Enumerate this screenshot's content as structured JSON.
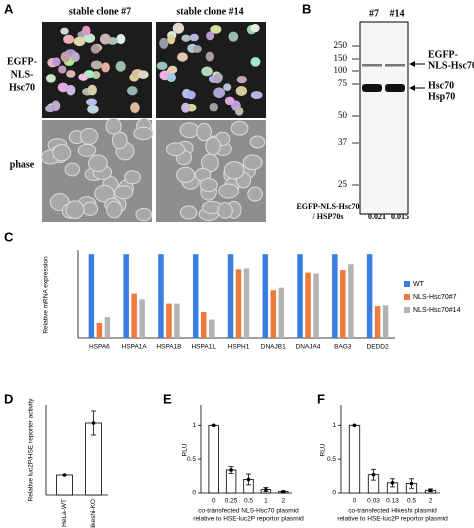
{
  "panels": {
    "A": {
      "label": "A",
      "columns": [
        "stable clone #7",
        "stable clone #14"
      ],
      "rows": [
        [
          "EGFP-",
          "NLS-",
          "Hsc70"
        ],
        [
          "phase"
        ]
      ]
    },
    "B": {
      "label": "B",
      "lanes": [
        "#7",
        "#14"
      ],
      "markers": [
        "250",
        "150",
        "100",
        "75",
        "50",
        "37",
        "25"
      ],
      "annotations": [
        [
          "EGFP-",
          "NLS-Hsc70"
        ],
        [
          "Hsc70",
          "Hsp70"
        ]
      ],
      "ratio_label": [
        "EGFP-NLS-Hsc70",
        "/ HSP70s"
      ],
      "ratios": [
        "0.021",
        "0.015"
      ]
    }
  },
  "chart_data": [
    {
      "type": "bar",
      "panel": "C",
      "ylabel": "Relative mRNA expression",
      "categories": [
        "HSPA6",
        "HSPA1A",
        "HSPA1B",
        "HSPA1L",
        "HSPH1",
        "DNAJB1",
        "DNAJA4",
        "BAG3",
        "DEDD2"
      ],
      "series": [
        {
          "name": "WT",
          "color": "#3a7de3",
          "values": [
            1,
            1,
            1,
            1,
            1,
            1,
            1,
            1,
            1
          ]
        },
        {
          "name": "NLS-Hsc70#7",
          "color": "#f07a3a",
          "values": [
            0.18,
            0.53,
            0.41,
            0.31,
            0.82,
            0.57,
            0.78,
            0.81,
            0.38
          ]
        },
        {
          "name": "NLS-Hsc70#14",
          "color": "#b3b3b3",
          "values": [
            0.25,
            0.46,
            0.41,
            0.22,
            0.83,
            0.6,
            0.77,
            0.88,
            0.39
          ]
        }
      ],
      "ylim": [
        0,
        1.05
      ]
    },
    {
      "type": "errbar",
      "panel": "D",
      "ylabel": "Relative luc2P/HSE reporter activity",
      "categories": [
        "HeLa-WT",
        "Hikeshi-KO"
      ],
      "values": [
        1,
        3.6
      ],
      "errors": [
        0,
        0.6
      ],
      "color": "#ffffff",
      "ylim": [
        0,
        4.5
      ]
    },
    {
      "type": "errbar",
      "panel": "E",
      "ylabel": "RLU",
      "xlabel": [
        "co-transfected NLS-Hsc70 plasmid",
        "relative to HSE-luc2P reportor plasmid"
      ],
      "categories": [
        "0",
        "0.25",
        "0.5",
        "1",
        "2"
      ],
      "values": [
        1,
        0.34,
        0.2,
        0.05,
        0.02
      ],
      "errors": [
        0,
        0.05,
        0.08,
        0.03,
        0.01
      ],
      "color": "#ffffff",
      "ylim": [
        0,
        1.3
      ],
      "yticks": [
        0,
        0.5,
        1
      ]
    },
    {
      "type": "errbar",
      "panel": "F",
      "ylabel": "RLU",
      "xlabel": [
        "co-transfected Hikeshi plasmid",
        "relative to HSE-luc2P reportor plasmid"
      ],
      "categories": [
        "0",
        "0.03",
        "0.13",
        "0.5",
        "2"
      ],
      "values": [
        1,
        0.27,
        0.15,
        0.14,
        0.04
      ],
      "errors": [
        0,
        0.08,
        0.06,
        0.07,
        0.02
      ],
      "color": "#ffffff",
      "ylim": [
        0,
        1.3
      ],
      "yticks": [
        0,
        0.5,
        1
      ]
    }
  ]
}
